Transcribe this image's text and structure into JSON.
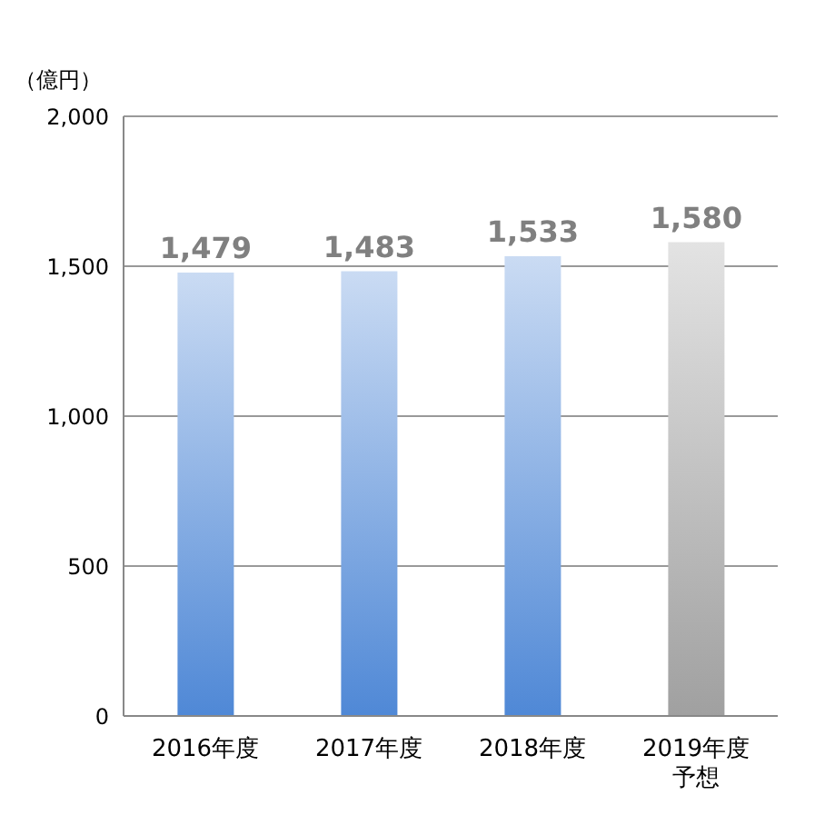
{
  "chart_data": {
    "type": "bar",
    "ylabel": "（億円）",
    "categories": [
      "2016年度",
      "2017年度",
      "2018年度",
      "2019年度予想"
    ],
    "values": [
      1479,
      1483,
      1533,
      1580
    ],
    "colors": [
      "#4f88d6",
      "#4f88d6",
      "#4f88d6",
      "#a0a0a0"
    ],
    "ylim": [
      0,
      2000
    ],
    "yticks": [
      {
        "value": 0,
        "label": "0"
      },
      {
        "value": 500,
        "label": "500"
      },
      {
        "value": 1000,
        "label": "1,000"
      },
      {
        "value": 1500,
        "label": "1,500"
      },
      {
        "value": 2000,
        "label": "2,000"
      }
    ],
    "grid": "y",
    "value_labels": [
      "1,479",
      "1,483",
      "1,533",
      "1,580"
    ]
  }
}
